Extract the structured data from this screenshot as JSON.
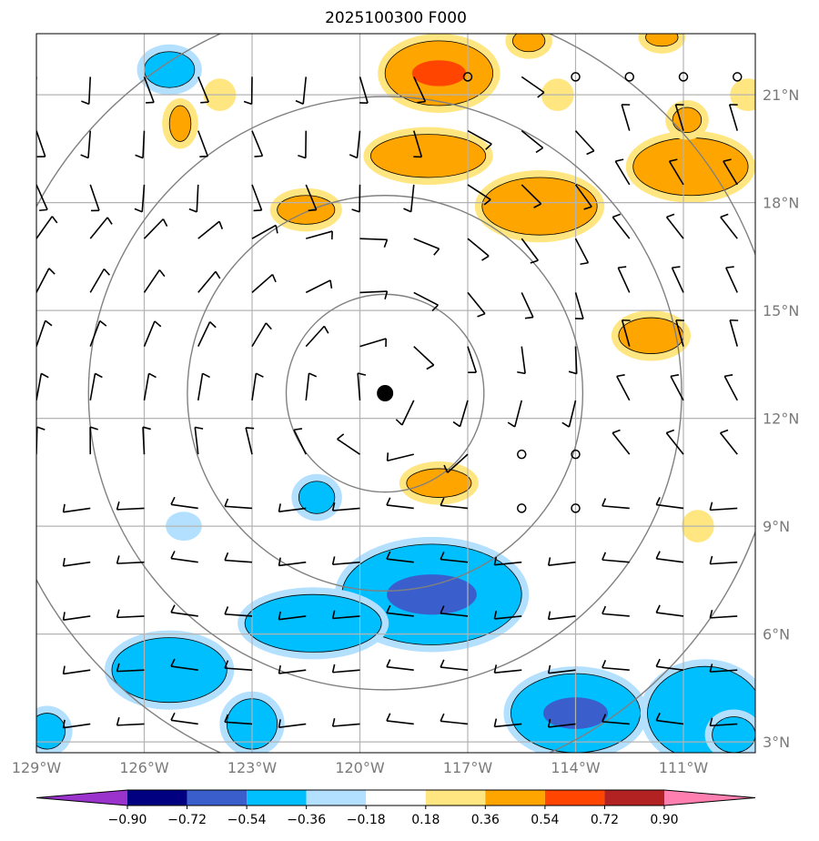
{
  "title": "2025100300 F000",
  "map": {
    "lon_range": [
      -129.0,
      -109.0
    ],
    "lat_range": [
      2.7,
      22.7
    ],
    "lat_labels": [
      {
        "value": 21,
        "text": "21°N"
      },
      {
        "value": 18,
        "text": "18°N"
      },
      {
        "value": 15,
        "text": "15°N"
      },
      {
        "value": 12,
        "text": "12°N"
      },
      {
        "value": 9,
        "text": "9°N"
      },
      {
        "value": 6,
        "text": "6°N"
      },
      {
        "value": 3,
        "text": "3°N"
      }
    ],
    "lon_labels": [
      {
        "value": -129,
        "text": "129°W"
      },
      {
        "value": -126,
        "text": "126°W"
      },
      {
        "value": -123,
        "text": "123°W"
      },
      {
        "value": -120,
        "text": "120°W"
      },
      {
        "value": -117,
        "text": "117°W"
      },
      {
        "value": -114,
        "text": "114°W"
      },
      {
        "value": -111,
        "text": "111°W"
      }
    ],
    "center": {
      "lon": -119.3,
      "lat": 12.7
    },
    "range_rings_deg": [
      2.75,
      5.5,
      8.25,
      11.0
    ],
    "gridline_color": "#b3b3b3",
    "ring_color": "#808080"
  },
  "colorbar": {
    "levels": [
      "−0.90",
      "−0.72",
      "−0.54",
      "−0.36",
      "−0.18",
      "0.18",
      "0.36",
      "0.54",
      "0.72",
      "0.90"
    ],
    "colors": [
      "#9933cc",
      "#000080",
      "#3a5fcd",
      "#00bfff",
      "#b3e0ff",
      "#ffffff",
      "#ffe680",
      "#ffa500",
      "#ff4500",
      "#b22222",
      "#ff80b0"
    ]
  },
  "field": {
    "colors": {
      "neg1": "#b3e0ff",
      "neg2": "#00bfff",
      "neg3": "#3a5fcd",
      "pos1": "#ffe680",
      "pos2": "#ffa500",
      "pos3": "#ff4500"
    },
    "blobs": [
      {
        "lon": -125.3,
        "lat": 21.7,
        "rx": 0.7,
        "ry": 0.5,
        "sign": "neg",
        "level": 2
      },
      {
        "lon": -117.8,
        "lat": 21.6,
        "rx": 1.5,
        "ry": 0.9,
        "sign": "pos",
        "level": 3
      },
      {
        "lon": -115.3,
        "lat": 22.5,
        "rx": 0.45,
        "ry": 0.3,
        "sign": "pos",
        "level": 2
      },
      {
        "lon": -111.6,
        "lat": 22.6,
        "rx": 0.45,
        "ry": 0.25,
        "sign": "pos",
        "level": 2
      },
      {
        "lon": -109.2,
        "lat": 21.0,
        "rx": 0.3,
        "ry": 0.25,
        "sign": "pos",
        "level": 1
      },
      {
        "lon": -114.5,
        "lat": 21.0,
        "rx": 0.25,
        "ry": 0.25,
        "sign": "pos",
        "level": 1
      },
      {
        "lon": -123.9,
        "lat": 21.0,
        "rx": 0.25,
        "ry": 0.25,
        "sign": "pos",
        "level": 1
      },
      {
        "lon": -125.0,
        "lat": 20.2,
        "rx": 0.3,
        "ry": 0.5,
        "sign": "pos",
        "level": 2
      },
      {
        "lon": -118.1,
        "lat": 19.3,
        "rx": 1.6,
        "ry": 0.6,
        "sign": "pos",
        "level": 2
      },
      {
        "lon": -115.0,
        "lat": 17.9,
        "rx": 1.6,
        "ry": 0.8,
        "sign": "pos",
        "level": 2
      },
      {
        "lon": -110.8,
        "lat": 19.0,
        "rx": 1.6,
        "ry": 0.8,
        "sign": "pos",
        "level": 2
      },
      {
        "lon": -110.9,
        "lat": 20.3,
        "rx": 0.4,
        "ry": 0.35,
        "sign": "pos",
        "level": 2
      },
      {
        "lon": -121.5,
        "lat": 17.8,
        "rx": 0.8,
        "ry": 0.4,
        "sign": "pos",
        "level": 2
      },
      {
        "lon": -111.9,
        "lat": 14.3,
        "rx": 0.9,
        "ry": 0.5,
        "sign": "pos",
        "level": 2
      },
      {
        "lon": -117.8,
        "lat": 10.2,
        "rx": 0.9,
        "ry": 0.4,
        "sign": "pos",
        "level": 2
      },
      {
        "lon": -121.2,
        "lat": 9.8,
        "rx": 0.5,
        "ry": 0.45,
        "sign": "neg",
        "level": 2
      },
      {
        "lon": -124.9,
        "lat": 9.0,
        "rx": 0.3,
        "ry": 0.2,
        "sign": "neg",
        "level": 1
      },
      {
        "lon": -110.6,
        "lat": 9.0,
        "rx": 0.25,
        "ry": 0.25,
        "sign": "pos",
        "level": 1
      },
      {
        "lon": -118.0,
        "lat": 7.1,
        "rx": 2.5,
        "ry": 1.4,
        "sign": "neg",
        "level": 3
      },
      {
        "lon": -121.3,
        "lat": 6.3,
        "rx": 1.9,
        "ry": 0.8,
        "sign": "neg",
        "level": 2
      },
      {
        "lon": -125.3,
        "lat": 5.0,
        "rx": 1.6,
        "ry": 0.9,
        "sign": "neg",
        "level": 2
      },
      {
        "lon": -123.0,
        "lat": 3.5,
        "rx": 0.7,
        "ry": 0.7,
        "sign": "neg",
        "level": 2
      },
      {
        "lon": -128.7,
        "lat": 3.3,
        "rx": 0.5,
        "ry": 0.5,
        "sign": "neg",
        "level": 2
      },
      {
        "lon": -114.0,
        "lat": 3.8,
        "rx": 1.8,
        "ry": 1.1,
        "sign": "neg",
        "level": 3
      },
      {
        "lon": -110.4,
        "lat": 3.8,
        "rx": 1.6,
        "ry": 1.3,
        "sign": "neg",
        "level": 2
      },
      {
        "lon": -109.6,
        "lat": 3.2,
        "rx": 0.6,
        "ry": 0.5,
        "sign": "neg",
        "level": 2
      }
    ]
  },
  "wind_grid": {
    "lon_step": 1.5,
    "lat_step": 1.5,
    "calm_points": [
      [
        -117.0,
        21.5
      ],
      [
        -114.0,
        21.5
      ],
      [
        -112.5,
        21.5
      ],
      [
        -111.0,
        21.5
      ],
      [
        -109.5,
        21.5
      ],
      [
        -115.5,
        11.0
      ],
      [
        -114.0,
        11.0
      ],
      [
        -115.5,
        9.5
      ],
      [
        -114.0,
        9.5
      ]
    ]
  }
}
